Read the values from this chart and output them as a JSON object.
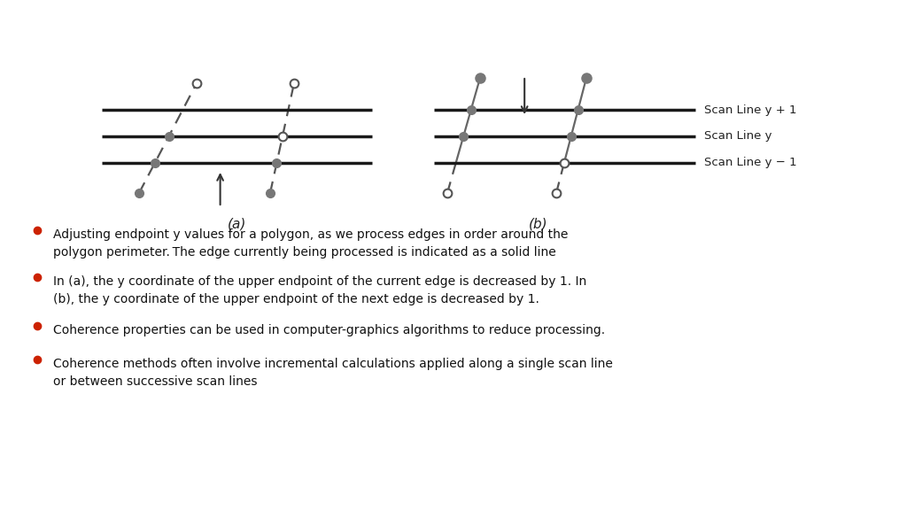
{
  "bg_color": "#ffffff",
  "border_color": "#cccccc",
  "scan_line_color": "#1a1a1a",
  "dashed_color": "#555555",
  "solid_edge_color": "#666666",
  "arrow_color": "#333333",
  "dot_gray": "#777777",
  "dot_white": "#ffffff",
  "scan_labels": [
    "Scan Line y + 1",
    "Scan Line y",
    "Scan Line y − 1"
  ],
  "bullet_color": "#cc2200",
  "bullet_texts": [
    "Adjusting endpoint y values for a polygon, as we process edges in order around the\npolygon perimeter. The edge currently being processed is indicated as a solid line",
    "In (a), the y coordinate of the upper endpoint of the current edge is decreased by 1. In\n(b), the y coordinate of the upper endpoint of the next edge is decreased by 1.",
    "Coherence properties can be used in computer-graphics algorithms to reduce processing.",
    "Coherence methods often involve incremental calculations applied along a single scan line\nor between successive scan lines"
  ],
  "label_a": "(a)",
  "label_b": "(b)",
  "fig_w": 10.24,
  "fig_h": 5.76
}
